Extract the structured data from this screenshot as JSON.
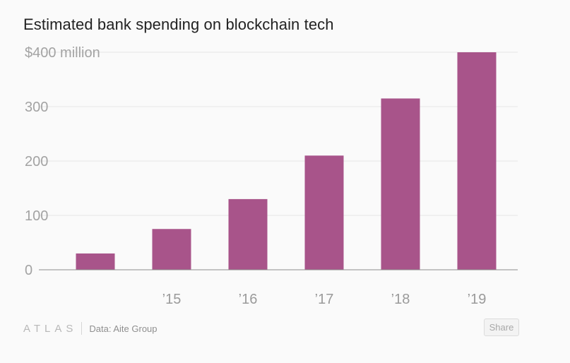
{
  "header": {
    "title": "Estimated bank spending on blockchain tech"
  },
  "footer": {
    "logo_text": "ATLAS",
    "source": "Data: Aite Group",
    "share_label": "Share"
  },
  "chart_data": {
    "type": "bar",
    "title": "Estimated bank spending on blockchain tech",
    "categories": [
      "",
      "’15",
      "’16",
      "’17",
      "’18",
      "’19"
    ],
    "values": [
      30,
      75,
      130,
      210,
      315,
      400
    ],
    "ylim": [
      0,
      400
    ],
    "yticks": [
      0,
      100,
      200,
      300,
      400
    ],
    "ytick_labels": [
      "0",
      "100",
      "200",
      "300",
      "$400 million"
    ],
    "xlabel": "",
    "ylabel": "",
    "grid": true,
    "bar_color": "#a8548a"
  }
}
